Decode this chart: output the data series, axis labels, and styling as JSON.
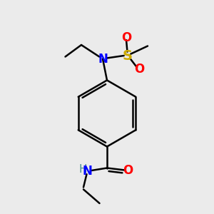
{
  "bg_color": "#ebebeb",
  "bond_color": "#000000",
  "bond_width": 1.8,
  "atom_colors": {
    "N": "#0000ff",
    "O": "#ff0000",
    "S": "#ccaa00",
    "H": "#4a9090",
    "C": "#000000"
  },
  "font_size": 12
}
